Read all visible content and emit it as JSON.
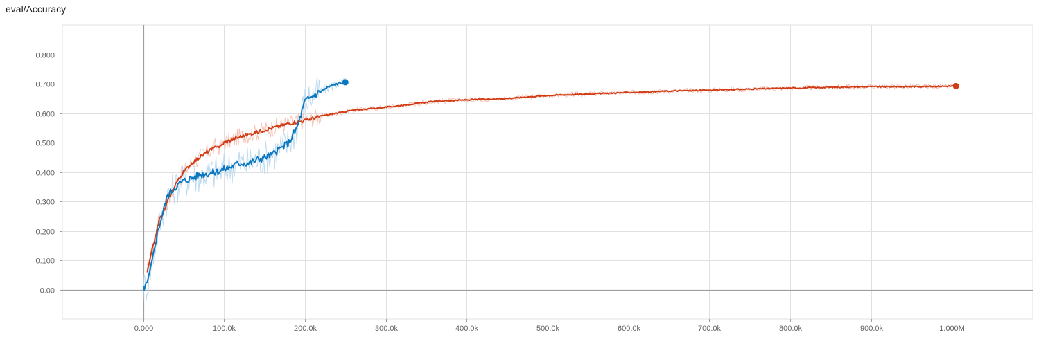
{
  "chart_data": {
    "type": "line",
    "title": "eval/Accuracy",
    "xlabel": "",
    "ylabel": "",
    "xlim": [
      -100000,
      1100000
    ],
    "ylim": [
      -0.1,
      0.9
    ],
    "grid": true,
    "legend": "none",
    "x_ticks": [
      0,
      100000,
      200000,
      300000,
      400000,
      500000,
      600000,
      700000,
      800000,
      900000,
      1000000
    ],
    "x_tick_labels": [
      "0.000",
      "100.0k",
      "200.0k",
      "300.0k",
      "400.0k",
      "500.0k",
      "600.0k",
      "700.0k",
      "800.0k",
      "900.0k",
      "1.000M"
    ],
    "y_ticks": [
      0,
      0.1,
      0.2,
      0.3,
      0.4,
      0.5,
      0.6,
      0.7,
      0.8
    ],
    "y_tick_labels": [
      "0.00",
      "0.100",
      "0.200",
      "0.300",
      "0.400",
      "0.500",
      "0.600",
      "0.700",
      "0.800"
    ],
    "series": [
      {
        "color": "#d13c17",
        "raw_color": "#f5c2b3",
        "x": [
          5000,
          10000,
          15000,
          20000,
          25000,
          30000,
          40000,
          50000,
          60000,
          70000,
          80000,
          88000,
          90000,
          95000,
          100000,
          120000,
          140000,
          160000,
          180000,
          200000,
          220000,
          240000,
          260000,
          280000,
          300000,
          330000,
          360000,
          400000,
          450000,
          500000,
          550000,
          600000,
          650000,
          700000,
          750000,
          800000,
          850000,
          900000,
          950000,
          1005000
        ],
        "y": [
          0.06,
          0.12,
          0.18,
          0.24,
          0.26,
          0.3,
          0.36,
          0.4,
          0.43,
          0.45,
          0.47,
          0.48,
          0.49,
          0.485,
          0.5,
          0.52,
          0.535,
          0.55,
          0.565,
          0.575,
          0.59,
          0.6,
          0.61,
          0.615,
          0.62,
          0.63,
          0.64,
          0.645,
          0.65,
          0.66,
          0.665,
          0.67,
          0.675,
          0.678,
          0.682,
          0.685,
          0.688,
          0.69,
          0.69,
          0.692
        ]
      },
      {
        "color": "#0a77c1",
        "raw_color": "#bcdaf0",
        "x": [
          0,
          5000,
          10000,
          15000,
          20000,
          25000,
          30000,
          40000,
          50000,
          60000,
          70000,
          80000,
          90000,
          100000,
          110000,
          120000,
          130000,
          140000,
          150000,
          160000,
          170000,
          180000,
          190000,
          200000,
          210000,
          220000,
          230000,
          240000,
          250000
        ],
        "y": [
          0.005,
          0.02,
          0.08,
          0.16,
          0.22,
          0.27,
          0.32,
          0.35,
          0.37,
          0.38,
          0.39,
          0.395,
          0.4,
          0.41,
          0.42,
          0.43,
          0.43,
          0.44,
          0.45,
          0.46,
          0.48,
          0.5,
          0.55,
          0.64,
          0.66,
          0.675,
          0.69,
          0.7,
          0.705
        ]
      }
    ]
  }
}
